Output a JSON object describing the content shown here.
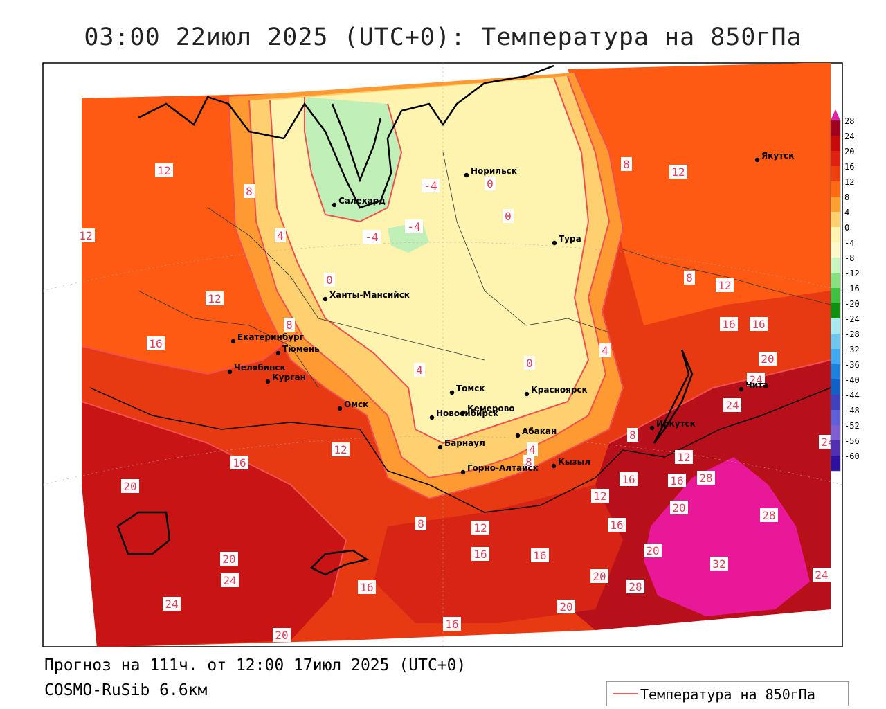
{
  "title": "03:00 22июл 2025 (UTC+0): Температура на 850гПа",
  "forecast_line": "Прогноз на 111ч. от 12:00 17июл 2025 (UTC+0)",
  "model_line": "COSMO-RuSib 6.6км",
  "legend": {
    "label": "Температура на 850гПа",
    "line_color": "#f06060"
  },
  "colorbar": {
    "ticks": [
      "28",
      "24",
      "20",
      "16",
      "12",
      "8",
      "4",
      "0",
      "-4",
      "-8",
      "-12",
      "-16",
      "-20",
      "-24",
      "-28",
      "-32",
      "-36",
      "-40",
      "-44",
      "-48",
      "-52",
      "-56",
      "-60"
    ],
    "colors": [
      "#a00020",
      "#c80a0a",
      "#e02010",
      "#f04010",
      "#ff6a10",
      "#ffa030",
      "#ffd070",
      "#fff3b0",
      "#fff8c8",
      "#c8f5c0",
      "#88e080",
      "#40c040",
      "#109010",
      "#a8e8f0",
      "#70c8f0",
      "#40a8f0",
      "#2080e0",
      "#1060c8",
      "#4040c0",
      "#6060d8",
      "#8060d0",
      "#5030b0",
      "#3010a0"
    ],
    "max_color": "#e020a0"
  },
  "cities": [
    {
      "name": "Якутск"
    },
    {
      "name": "Норильск"
    },
    {
      "name": "Салехард"
    },
    {
      "name": "Тура"
    },
    {
      "name": "Ханты-Мансийск"
    },
    {
      "name": "Екатеринбург"
    },
    {
      "name": "Тюмень"
    },
    {
      "name": "Челябинск"
    },
    {
      "name": "Курган"
    },
    {
      "name": "Омск"
    },
    {
      "name": "Томск"
    },
    {
      "name": "Красноярск"
    },
    {
      "name": "Новосибирск"
    },
    {
      "name": "Кемерово"
    },
    {
      "name": "Барнаул"
    },
    {
      "name": "Абакан"
    },
    {
      "name": "Иркутск"
    },
    {
      "name": "Чита"
    },
    {
      "name": "Горно-Алтайск"
    },
    {
      "name": "Кызыл"
    }
  ],
  "contour_labels": [
    "12",
    "8",
    "8",
    "12",
    "-4",
    "0",
    "0",
    "-4",
    "-4",
    "4",
    "0",
    "12",
    "8",
    "12",
    "16",
    "16",
    "20",
    "8",
    "12",
    "4",
    "0",
    "4",
    "16",
    "24",
    "8",
    "4",
    "8",
    "12",
    "24",
    "12",
    "16",
    "20",
    "16",
    "16",
    "12",
    "28",
    "20",
    "28",
    "16",
    "8",
    "12",
    "16",
    "16",
    "24",
    "20",
    "20",
    "24",
    "20",
    "24",
    "28",
    "32",
    "16",
    "20",
    "16",
    "20",
    "24"
  ]
}
